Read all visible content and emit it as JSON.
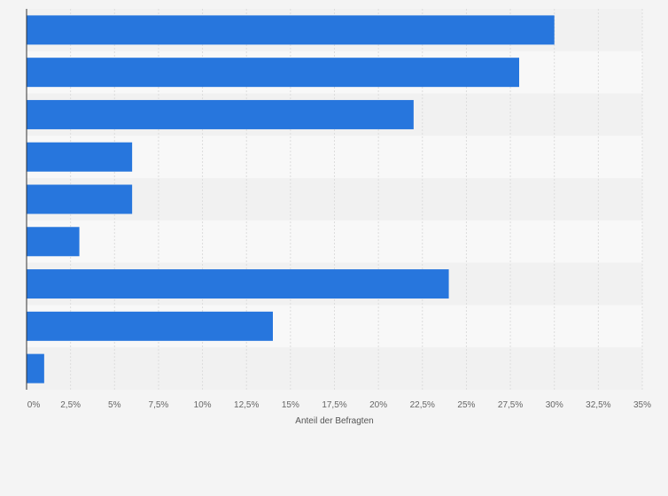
{
  "chart_data": {
    "type": "bar",
    "orientation": "horizontal",
    "categories": [
      "",
      "",
      "",
      "",
      "",
      "",
      "",
      "",
      ""
    ],
    "values": [
      30,
      28,
      22,
      6,
      6,
      3,
      24,
      14,
      1
    ],
    "title": "",
    "xlabel": "Anteil der Befragten",
    "ylabel": "",
    "xlim": [
      0,
      35
    ],
    "xticks": [
      0,
      2.5,
      5,
      7.5,
      10,
      12.5,
      15,
      17.5,
      20,
      22.5,
      25,
      27.5,
      30,
      32.5,
      35
    ],
    "xtick_labels": [
      "0%",
      "2,5%",
      "5%",
      "7,5%",
      "10%",
      "12,5%",
      "15%",
      "17,5%",
      "20%",
      "22,5%",
      "25%",
      "27,5%",
      "30%",
      "32,5%",
      "35%"
    ],
    "grid": true,
    "colors": {
      "bar": "#2776dd",
      "band_dark": "#f1f1f1",
      "band_light": "#f8f8f8",
      "grid": "#dddddd",
      "axis": "#333333",
      "background": "#f4f4f4"
    }
  }
}
